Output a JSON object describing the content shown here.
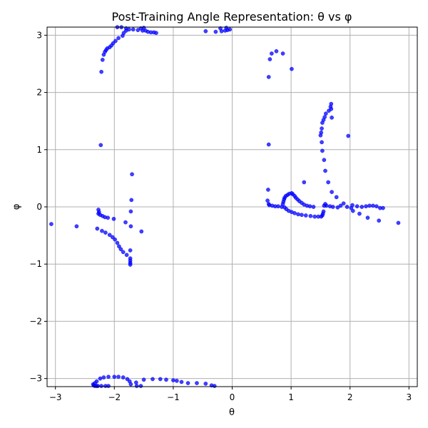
{
  "chart_data": {
    "type": "scatter",
    "title": "Post-Training Angle Representation: θ vs φ",
    "xlabel": "θ",
    "ylabel": "φ",
    "xlim": [
      -3.14159,
      3.14159
    ],
    "ylim": [
      -3.14159,
      3.14159
    ],
    "xticks": [
      -3,
      -2,
      -1,
      0,
      1,
      2,
      3
    ],
    "yticks": [
      -3,
      -2,
      -1,
      0,
      1,
      2,
      3
    ],
    "xtick_labels": [
      "−3",
      "−2",
      "−1",
      "0",
      "1",
      "2",
      "3"
    ],
    "ytick_labels": [
      "−3",
      "−2",
      "−1",
      "0",
      "1",
      "2",
      "3"
    ],
    "grid": true,
    "color": "#0000ff",
    "points": [
      [
        -2.2,
        2.57
      ],
      [
        -2.18,
        2.66
      ],
      [
        -2.16,
        2.71
      ],
      [
        -2.14,
        2.74
      ],
      [
        -2.12,
        2.77
      ],
      [
        -2.08,
        2.79
      ],
      [
        -2.05,
        2.82
      ],
      [
        -2.02,
        2.86
      ],
      [
        -1.98,
        2.9
      ],
      [
        -1.93,
        2.95
      ],
      [
        -1.86,
        2.99
      ],
      [
        -1.84,
        3.04
      ],
      [
        -1.8,
        3.08
      ],
      [
        -1.75,
        3.1
      ],
      [
        -1.68,
        3.1
      ],
      [
        -1.6,
        3.09
      ],
      [
        -1.52,
        3.08
      ],
      [
        -1.47,
        3.08
      ],
      [
        -1.43,
        3.06
      ],
      [
        -1.38,
        3.05
      ],
      [
        -1.33,
        3.05
      ],
      [
        -1.29,
        3.04
      ],
      [
        -1.95,
        3.14
      ],
      [
        -1.88,
        3.14
      ],
      [
        -1.8,
        3.12
      ],
      [
        -1.55,
        3.12
      ],
      [
        -1.5,
        3.13
      ],
      [
        -2.22,
        2.36
      ],
      [
        -0.45,
        3.07
      ],
      [
        -0.28,
        3.06
      ],
      [
        -0.18,
        3.07
      ],
      [
        -0.12,
        3.08
      ],
      [
        -0.08,
        3.09
      ],
      [
        -0.04,
        3.1
      ],
      [
        -0.2,
        3.12
      ],
      [
        -0.1,
        3.13
      ],
      [
        0.62,
        2.27
      ],
      [
        0.64,
        2.58
      ],
      [
        0.67,
        2.68
      ],
      [
        0.75,
        2.72
      ],
      [
        0.86,
        2.68
      ],
      [
        1.01,
        2.41
      ],
      [
        1.97,
        1.24
      ],
      [
        1.68,
        1.8
      ],
      [
        1.67,
        1.75
      ],
      [
        1.68,
        1.71
      ],
      [
        1.64,
        1.68
      ],
      [
        1.59,
        1.63
      ],
      [
        1.57,
        1.57
      ],
      [
        1.69,
        1.56
      ],
      [
        1.55,
        1.52
      ],
      [
        1.53,
        1.47
      ],
      [
        1.52,
        1.37
      ],
      [
        1.51,
        1.3
      ],
      [
        1.5,
        1.25
      ],
      [
        1.52,
        1.13
      ],
      [
        1.53,
        0.98
      ],
      [
        1.56,
        0.82
      ],
      [
        1.58,
        0.63
      ],
      [
        1.63,
        0.43
      ],
      [
        1.69,
        0.26
      ],
      [
        1.77,
        0.17
      ],
      [
        1.22,
        0.43
      ],
      [
        0.62,
        1.09
      ],
      [
        0.61,
        0.3
      ],
      [
        0.6,
        0.11
      ],
      [
        0.62,
        0.05
      ],
      [
        0.63,
        0.03
      ],
      [
        0.68,
        0.02
      ],
      [
        0.73,
        0.01
      ],
      [
        0.78,
        0.01
      ],
      [
        0.84,
        0.0
      ],
      [
        0.86,
        0.05
      ],
      [
        0.87,
        0.09
      ],
      [
        0.88,
        0.13
      ],
      [
        0.89,
        0.16
      ],
      [
        0.91,
        0.19
      ],
      [
        0.94,
        0.21
      ],
      [
        0.97,
        0.23
      ],
      [
        1.01,
        0.24
      ],
      [
        1.03,
        0.22
      ],
      [
        1.06,
        0.19
      ],
      [
        1.08,
        0.16
      ],
      [
        1.11,
        0.13
      ],
      [
        1.14,
        0.1
      ],
      [
        1.18,
        0.07
      ],
      [
        1.22,
        0.04
      ],
      [
        1.27,
        0.02
      ],
      [
        1.32,
        0.01
      ],
      [
        1.38,
        0.0
      ],
      [
        0.89,
        -0.01
      ],
      [
        0.92,
        -0.04
      ],
      [
        0.96,
        -0.07
      ],
      [
        1.01,
        -0.09
      ],
      [
        1.06,
        -0.11
      ],
      [
        1.12,
        -0.13
      ],
      [
        1.18,
        -0.14
      ],
      [
        1.25,
        -0.15
      ],
      [
        1.33,
        -0.16
      ],
      [
        1.4,
        -0.17
      ],
      [
        1.46,
        -0.17
      ],
      [
        1.51,
        -0.17
      ],
      [
        1.53,
        -0.15
      ],
      [
        1.54,
        -0.12
      ],
      [
        1.55,
        -0.08
      ],
      [
        1.56,
        0.02
      ],
      [
        1.58,
        0.05
      ],
      [
        1.6,
        0.02
      ],
      [
        1.66,
        0.01
      ],
      [
        1.71,
        0.0
      ],
      [
        1.79,
        -0.01
      ],
      [
        1.84,
        0.02
      ],
      [
        1.89,
        0.06
      ],
      [
        1.95,
        0.0
      ],
      [
        2.02,
        -0.02
      ],
      [
        2.04,
        0.03
      ],
      [
        2.05,
        -0.07
      ],
      [
        2.12,
        0.01
      ],
      [
        2.16,
        -0.12
      ],
      [
        2.2,
        0.0
      ],
      [
        2.27,
        0.01
      ],
      [
        2.3,
        -0.19
      ],
      [
        2.33,
        0.02
      ],
      [
        2.39,
        0.02
      ],
      [
        2.45,
        0.01
      ],
      [
        2.49,
        -0.24
      ],
      [
        2.51,
        -0.02
      ],
      [
        2.56,
        -0.02
      ],
      [
        2.82,
        -0.28
      ],
      [
        -2.23,
        1.08
      ],
      [
        -1.7,
        0.57
      ],
      [
        -1.71,
        0.12
      ],
      [
        -1.72,
        -0.08
      ],
      [
        -1.72,
        -0.34
      ],
      [
        -1.54,
        -0.43
      ],
      [
        -3.07,
        -0.3
      ],
      [
        -2.64,
        -0.34
      ],
      [
        -2.27,
        -0.05
      ],
      [
        -2.26,
        -0.09
      ],
      [
        -2.27,
        -0.12
      ],
      [
        -2.24,
        -0.14
      ],
      [
        -2.2,
        -0.16
      ],
      [
        -2.16,
        -0.18
      ],
      [
        -2.11,
        -0.19
      ],
      [
        -2.01,
        -0.21
      ],
      [
        -2.29,
        -0.38
      ],
      [
        -2.21,
        -0.42
      ],
      [
        -2.15,
        -0.45
      ],
      [
        -2.08,
        -0.49
      ],
      [
        -2.03,
        -0.53
      ],
      [
        -1.99,
        -0.57
      ],
      [
        -1.95,
        -0.63
      ],
      [
        -1.92,
        -0.69
      ],
      [
        -1.89,
        -0.74
      ],
      [
        -1.85,
        -0.79
      ],
      [
        -1.81,
        -0.27
      ],
      [
        -1.79,
        -0.84
      ],
      [
        -1.73,
        -0.76
      ],
      [
        -1.73,
        -0.9
      ],
      [
        -1.73,
        -0.94
      ],
      [
        -1.73,
        -0.98
      ],
      [
        -1.73,
        -1.01
      ],
      [
        -2.3,
        -3.05
      ],
      [
        -2.33,
        -3.08
      ],
      [
        -2.24,
        -3.0
      ],
      [
        -2.18,
        -2.98
      ],
      [
        -2.1,
        -2.97
      ],
      [
        -2.0,
        -2.97
      ],
      [
        -1.93,
        -2.97
      ],
      [
        -1.85,
        -2.98
      ],
      [
        -1.78,
        -3.01
      ],
      [
        -1.74,
        -3.05
      ],
      [
        -1.63,
        -3.07
      ],
      [
        -1.5,
        -3.02
      ],
      [
        -1.35,
        -3.01
      ],
      [
        -1.22,
        -3.01
      ],
      [
        -1.12,
        -3.02
      ],
      [
        -1.0,
        -3.03
      ],
      [
        -0.94,
        -3.04
      ],
      [
        -0.86,
        -3.06
      ],
      [
        -0.75,
        -3.08
      ],
      [
        -0.6,
        -3.08
      ],
      [
        -0.45,
        -3.09
      ],
      [
        -0.35,
        -3.12
      ],
      [
        -0.3,
        -3.13
      ],
      [
        -2.36,
        -3.1
      ],
      [
        -2.35,
        -3.12
      ],
      [
        -2.33,
        -3.13
      ],
      [
        -2.3,
        -3.13
      ],
      [
        -2.28,
        -3.13
      ],
      [
        -2.22,
        -3.13
      ],
      [
        -2.15,
        -3.13
      ],
      [
        -2.1,
        -3.13
      ],
      [
        -1.62,
        -3.13
      ],
      [
        -1.55,
        -3.13
      ],
      [
        -1.72,
        -3.1
      ]
    ]
  }
}
